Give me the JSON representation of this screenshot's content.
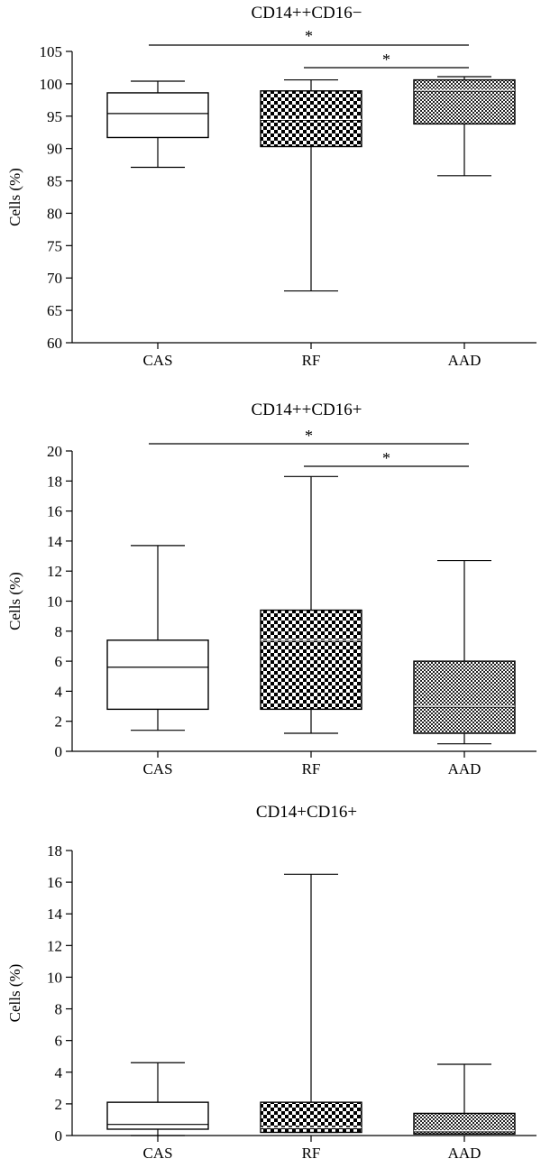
{
  "chart_data": [
    {
      "type": "box",
      "title": "CD14++CD16−",
      "ylabel": "Cells (%)",
      "ylim": [
        60,
        105
      ],
      "yticks": [
        60,
        65,
        70,
        75,
        80,
        85,
        90,
        95,
        100,
        105
      ],
      "categories": [
        "CAS",
        "RF",
        "AAD"
      ],
      "boxes": [
        {
          "category": "CAS",
          "min": 87.1,
          "q1": 91.7,
          "median": 95.4,
          "q3": 98.6,
          "max": 100.4,
          "pattern": "none"
        },
        {
          "category": "RF",
          "min": 68.0,
          "q1": 90.3,
          "median": 94.5,
          "q3": 98.9,
          "max": 100.6,
          "pattern": "checker-large"
        },
        {
          "category": "AAD",
          "min": 85.8,
          "q1": 93.8,
          "median": 99.0,
          "q3": 100.6,
          "max": 101.1,
          "pattern": "checker-small"
        }
      ],
      "significance": [
        {
          "from": "CAS",
          "to": "AAD",
          "label": "*"
        },
        {
          "from": "RF",
          "to": "AAD",
          "label": "*"
        }
      ]
    },
    {
      "type": "box",
      "title": "CD14++CD16+",
      "ylabel": "Cells (%)",
      "ylim": [
        0,
        20
      ],
      "yticks": [
        0,
        2,
        4,
        6,
        8,
        10,
        12,
        14,
        16,
        18,
        20
      ],
      "categories": [
        "CAS",
        "RF",
        "AAD"
      ],
      "boxes": [
        {
          "category": "CAS",
          "min": 1.4,
          "q1": 2.8,
          "median": 5.6,
          "q3": 7.4,
          "max": 13.7,
          "pattern": "none"
        },
        {
          "category": "RF",
          "min": 1.2,
          "q1": 2.8,
          "median": 7.4,
          "q3": 9.4,
          "max": 18.3,
          "pattern": "checker-large"
        },
        {
          "category": "AAD",
          "min": 0.5,
          "q1": 1.2,
          "median": 3.0,
          "q3": 6.0,
          "max": 12.7,
          "pattern": "checker-small"
        }
      ],
      "significance": [
        {
          "from": "CAS",
          "to": "AAD",
          "label": "*"
        },
        {
          "from": "RF",
          "to": "AAD",
          "label": "*"
        }
      ]
    },
    {
      "type": "box",
      "title": "CD14+CD16+",
      "ylabel": "Cells (%)",
      "ylim": [
        0,
        18
      ],
      "yticks": [
        0,
        2,
        4,
        6,
        8,
        10,
        12,
        14,
        16,
        18
      ],
      "categories": [
        "CAS",
        "RF",
        "AAD"
      ],
      "boxes": [
        {
          "category": "CAS",
          "min": 0.0,
          "q1": 0.4,
          "median": 0.7,
          "q3": 2.1,
          "max": 4.6,
          "pattern": "none"
        },
        {
          "category": "RF",
          "min": 0.2,
          "q1": 0.2,
          "median": 0.5,
          "q3": 2.1,
          "max": 16.5,
          "pattern": "checker-large"
        },
        {
          "category": "AAD",
          "min": 0.1,
          "q1": 0.1,
          "median": 0.3,
          "q3": 1.4,
          "max": 4.5,
          "pattern": "checker-small"
        }
      ],
      "significance": []
    }
  ]
}
